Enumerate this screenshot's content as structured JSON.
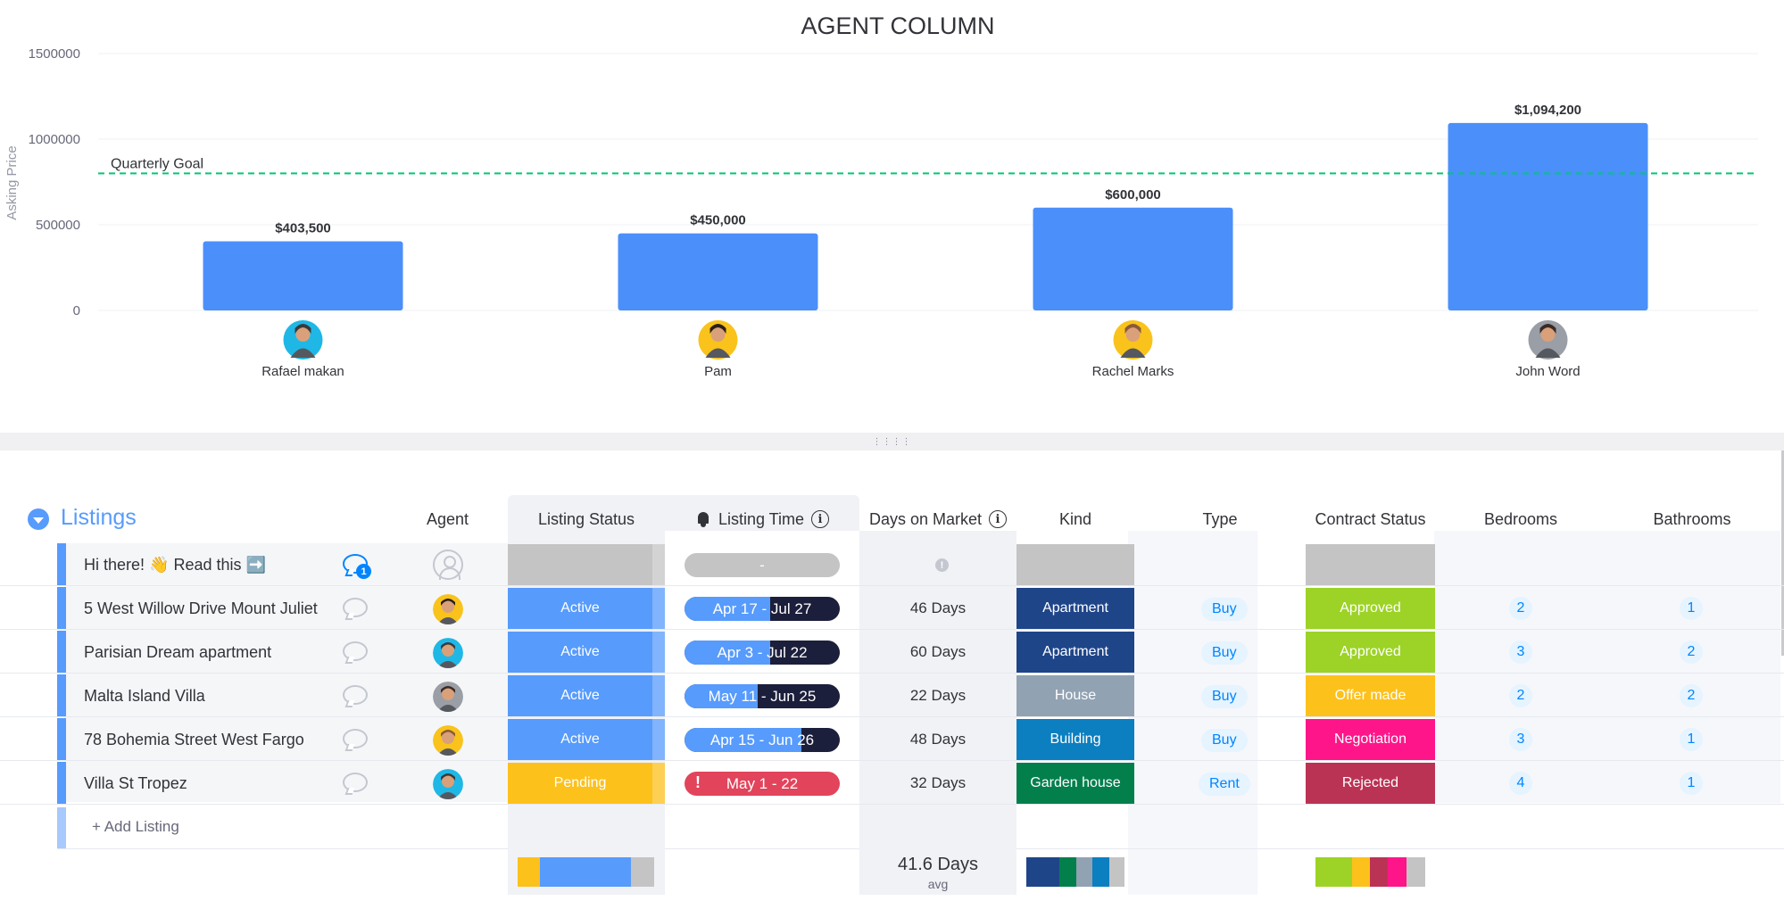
{
  "chart_data": {
    "type": "bar",
    "title": "AGENT COLUMN",
    "ylabel": "Asking Price",
    "xlabel": "",
    "ylim": [
      0,
      1500000
    ],
    "yticks": [
      "1500000",
      "1000000",
      "500000",
      "0"
    ],
    "yticks_values": [
      1500000,
      1000000,
      500000,
      0
    ],
    "categories": [
      "Rafael makan",
      "Pam",
      "Rachel Marks",
      "John Word"
    ],
    "values": [
      403500,
      450000,
      600000,
      1094200
    ],
    "value_labels": [
      "$403,500",
      "$450,000",
      "$600,000",
      "$1,094,200"
    ],
    "bar_color": "#4b8ffa",
    "goal": {
      "label": "Quarterly Goal",
      "value": 800000,
      "color": "#00c875"
    },
    "grid": true,
    "legend": "none"
  },
  "splitter": {
    "grip": "⋮⋮⋮⋮"
  },
  "group": {
    "title": "Listings",
    "color": "#579bfc"
  },
  "columns": {
    "agent": "Agent",
    "listing_status": "Listing Status",
    "listing_time": "Listing Time",
    "days_on_market": "Days on Market",
    "kind": "Kind",
    "type": "Type",
    "contract_status": "Contract Status",
    "bedrooms": "Bedrooms",
    "bathrooms": "Bathrooms"
  },
  "rows": [
    {
      "name": "Hi there! 👋 Read this ➡️",
      "chat_count": "1",
      "agent": "",
      "status": "",
      "timeline": "-",
      "days": "",
      "kind": "",
      "type": "",
      "contract": "",
      "bedrooms": "",
      "bathrooms": ""
    },
    {
      "name": "5 West Willow Drive Mount Juliet",
      "agent": "Pam",
      "status": "Active",
      "timeline": "Apr 17 - Jul 27",
      "timeline_progress": 0.55,
      "days": "46 Days",
      "kind": "Apartment",
      "type": "Buy",
      "contract": "Approved",
      "bedrooms": "2",
      "bathrooms": "1"
    },
    {
      "name": "Parisian Dream apartment",
      "agent": "Rafael makan",
      "status": "Active",
      "timeline": "Apr 3 - Jul 22",
      "timeline_progress": 0.55,
      "days": "60 Days",
      "kind": "Apartment",
      "type": "Buy",
      "contract": "Approved",
      "bedrooms": "3",
      "bathrooms": "2"
    },
    {
      "name": "Malta Island Villa",
      "agent": "John Word",
      "status": "Active",
      "timeline": "May 11 - Jun 25",
      "timeline_progress": 0.47,
      "days": "22 Days",
      "kind": "House",
      "type": "Buy",
      "contract": "Offer made",
      "bedrooms": "2",
      "bathrooms": "2"
    },
    {
      "name": "78 Bohemia Street West Fargo",
      "agent": "Rachel Marks",
      "status": "Active",
      "timeline": "Apr 15 - Jun 26",
      "timeline_progress": 0.75,
      "days": "48 Days",
      "kind": "Building",
      "type": "Buy",
      "contract": "Negotiation",
      "bedrooms": "3",
      "bathrooms": "1"
    },
    {
      "name": "Villa St Tropez",
      "agent": "Rafael makan",
      "status": "Pending",
      "timeline": "May 1 - 22",
      "timeline_overdue": true,
      "timeline_flag": "!",
      "days": "32 Days",
      "kind": "Garden house",
      "type": "Rent",
      "contract": "Rejected",
      "bedrooms": "4",
      "bathrooms": "1"
    }
  ],
  "add_row": "+ Add Listing",
  "summary": {
    "avg_days": "41.6 Days",
    "avg_label": "avg"
  },
  "colors": {
    "active": "#579bfc",
    "pending": "#fdc11b",
    "empty": "#c4c4c4",
    "apartment": "#1f4589",
    "house": "#91a2b3",
    "building": "#0b7fc0",
    "garden_house": "#037f4c",
    "approved": "#9cd326",
    "offer_made": "#fdc11b",
    "negotiation": "#ff158a",
    "rejected": "#bb3354"
  }
}
